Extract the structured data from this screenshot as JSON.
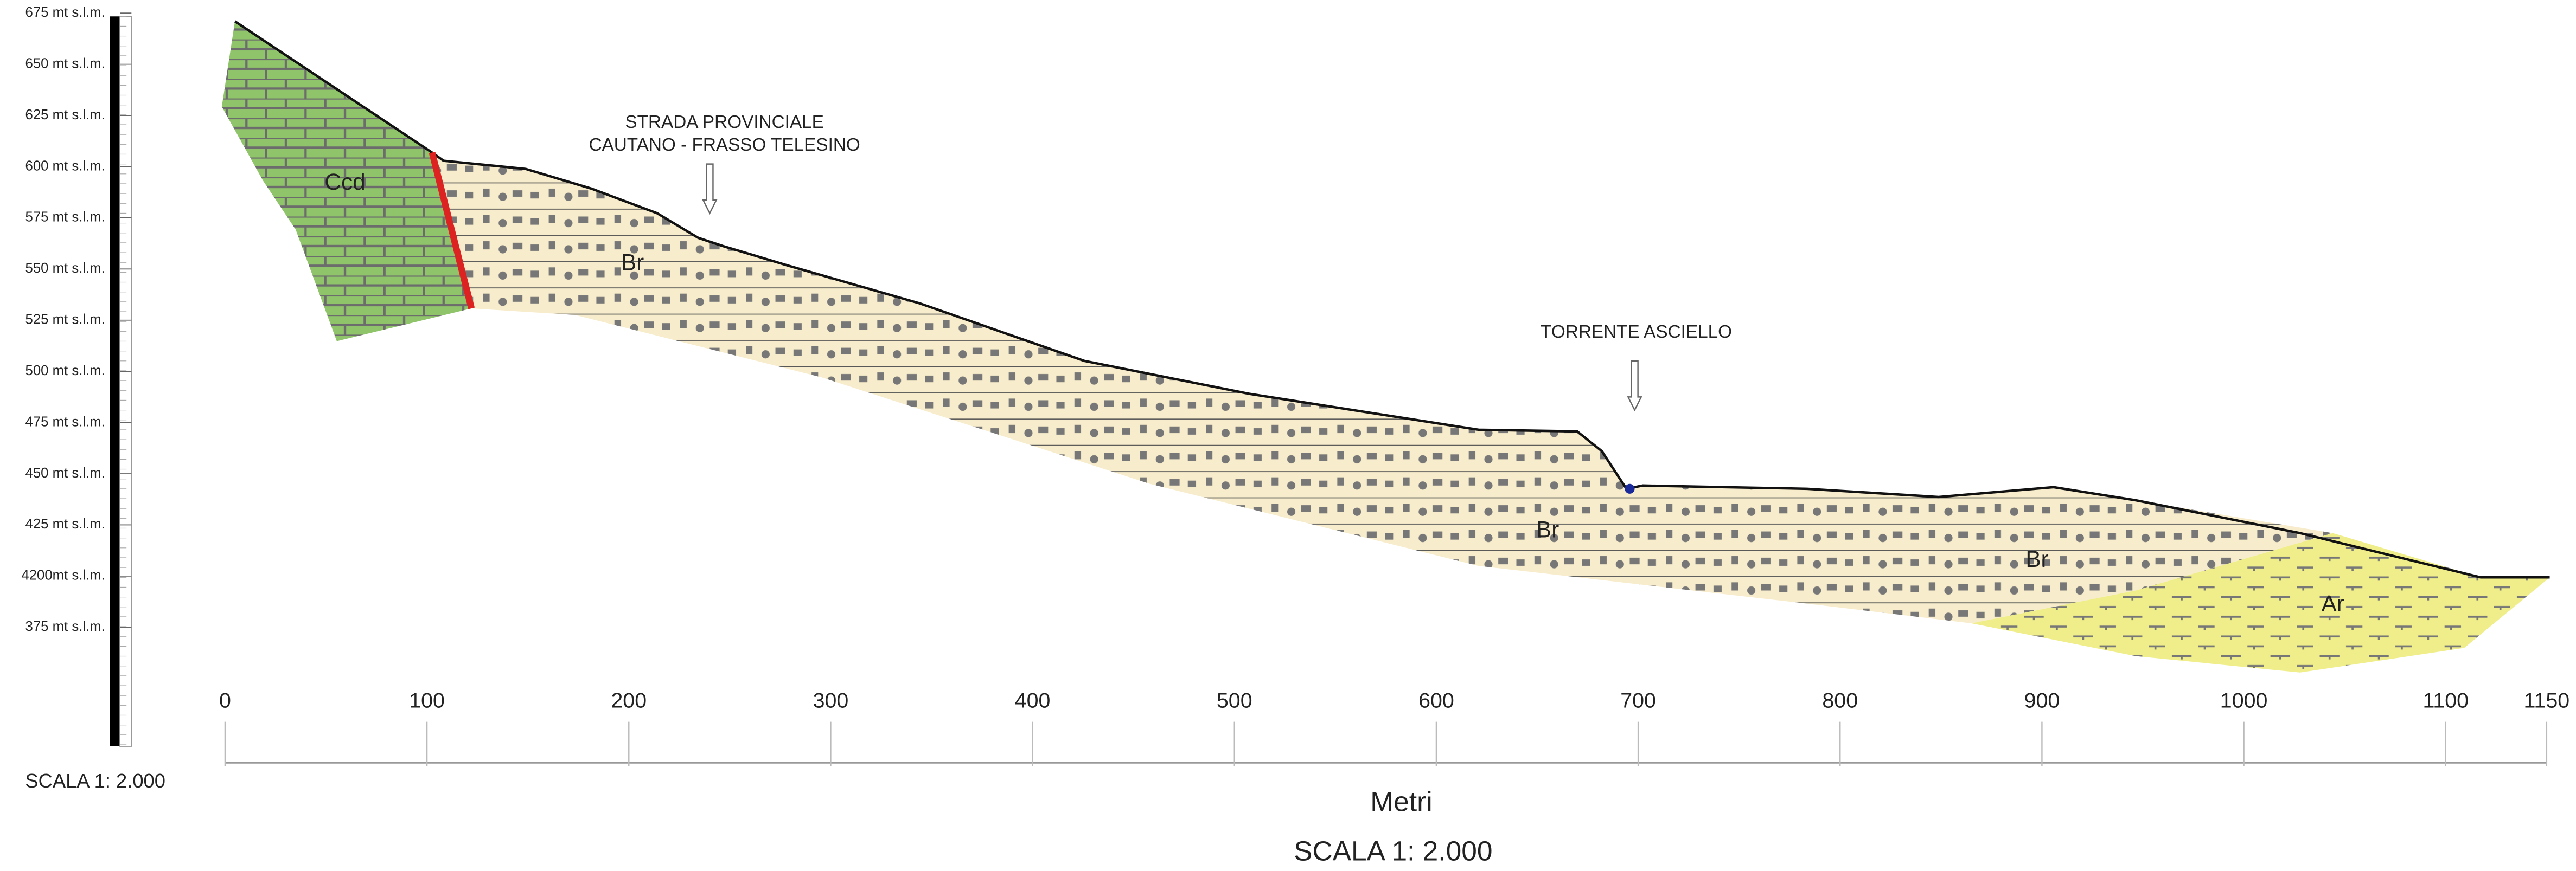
{
  "elevation_labels": [
    "675 mt s.l.m.",
    "650 mt s.l.m.",
    "625 mt s.l.m.",
    "600 mt s.l.m.",
    "575 mt s.l.m.",
    "550 mt s.l.m.",
    "525 mt s.l.m.",
    "500 mt s.l.m.",
    "475 mt s.l.m.",
    "450 mt s.l.m.",
    "425 mt s.l.m.",
    "4200mt s.l.m.",
    "375 mt s.l.m."
  ],
  "x_axis": {
    "ticks": [
      0,
      100,
      200,
      300,
      400,
      500,
      600,
      700,
      800,
      900,
      1000,
      1100,
      1150
    ],
    "label": "Metri"
  },
  "annotations": {
    "road": [
      "STRADA PROVINCIALE",
      "CAUTANO - FRASSO TELESINO"
    ],
    "stream": "TORRENTE ASCIELLO"
  },
  "formations": [
    "Ccd",
    "Br",
    "Br",
    "Br",
    "Ar"
  ],
  "scale_left": "SCALA 1: 2.000",
  "scale_bottom": "SCALA 1: 2.000"
}
